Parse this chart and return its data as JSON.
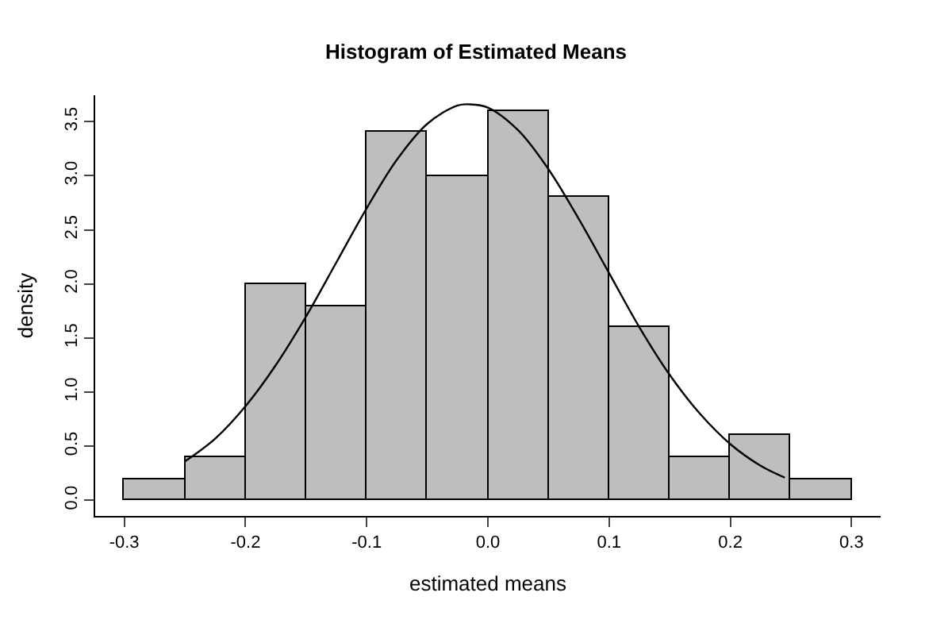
{
  "chart_data": {
    "type": "histogram",
    "title": "Histogram of Estimated Means",
    "xlabel": "estimated means",
    "ylabel": "density",
    "bins": [
      -0.3,
      -0.25,
      -0.2,
      -0.15,
      -0.1,
      -0.05,
      0.0,
      0.05,
      0.1,
      0.15,
      0.2,
      0.25,
      0.3
    ],
    "values": [
      0.2,
      0.4,
      2.0,
      1.8,
      3.4,
      3.0,
      3.6,
      2.8,
      1.6,
      0.4,
      0.6,
      0.2
    ],
    "color": "#bebebe",
    "series": [
      {
        "type": "line",
        "color": "#000000",
        "x": [
          -0.25,
          -0.225,
          -0.2,
          -0.175,
          -0.15,
          -0.125,
          -0.1,
          -0.075,
          -0.05,
          -0.025,
          -0.015,
          0.0,
          0.025,
          0.05,
          0.075,
          0.1,
          0.125,
          0.15,
          0.175,
          0.2,
          0.225,
          0.245
        ],
        "values": [
          0.36,
          0.57,
          0.87,
          1.25,
          1.7,
          2.2,
          2.7,
          3.15,
          3.48,
          3.65,
          3.66,
          3.63,
          3.42,
          3.06,
          2.6,
          2.1,
          1.6,
          1.16,
          0.8,
          0.52,
          0.32,
          0.21
        ]
      }
    ],
    "xlim": [
      -0.324,
      0.324
    ],
    "ylim": [
      -0.144,
      3.744
    ],
    "xticks": [
      -0.3,
      -0.2,
      -0.1,
      {
        "value": 0,
        "label": "0.0"
      },
      0.1,
      0.2,
      0.3
    ],
    "yticks": [
      {
        "value": 0,
        "label": "0.0"
      },
      0.5,
      {
        "value": 1,
        "label": "1.0"
      },
      1.5,
      {
        "value": 2,
        "label": "2.0"
      },
      2.5,
      {
        "value": 3,
        "label": "3.0"
      },
      3.5
    ]
  }
}
